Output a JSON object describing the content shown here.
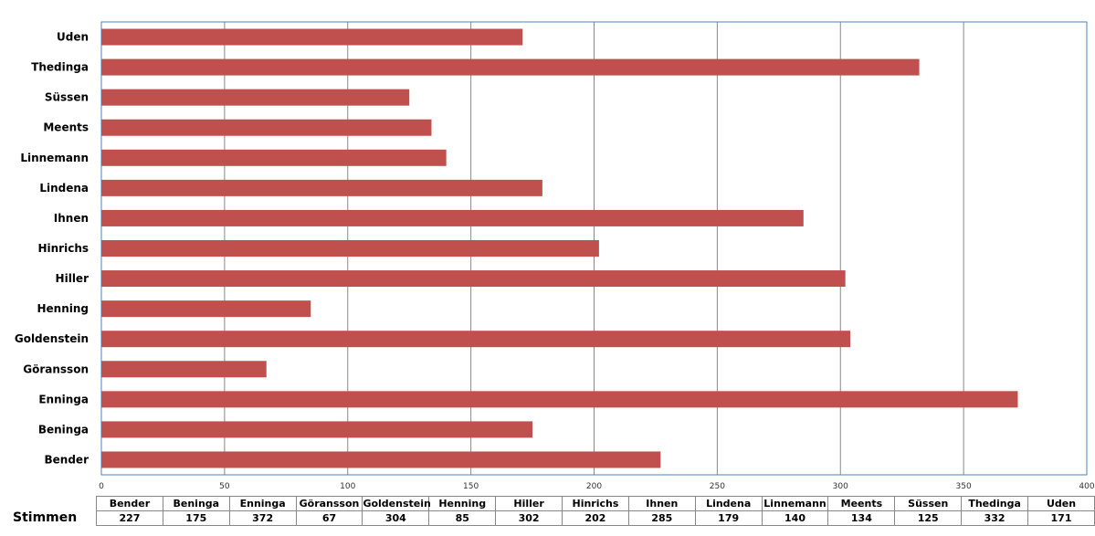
{
  "chart_data": {
    "type": "bar",
    "orientation": "horizontal",
    "categories": [
      "Bender",
      "Beninga",
      "Enninga",
      "Göransson",
      "Goldenstein",
      "Henning",
      "Hiller",
      "Hinrichs",
      "Ihnen",
      "Lindena",
      "Linnemann",
      "Meents",
      "Süssen",
      "Thedinga",
      "Uden"
    ],
    "series": [
      {
        "name": "Stimmen",
        "values": [
          227,
          175,
          372,
          67,
          304,
          85,
          302,
          202,
          285,
          179,
          140,
          134,
          125,
          332,
          171
        ],
        "color": "#C0504D"
      }
    ],
    "xlim": [
      0,
      400
    ],
    "xticks": [
      "0",
      "50",
      "100",
      "150",
      "200",
      "250",
      "300",
      "350",
      "400"
    ],
    "grid": true,
    "legend": "data-table-below"
  }
}
